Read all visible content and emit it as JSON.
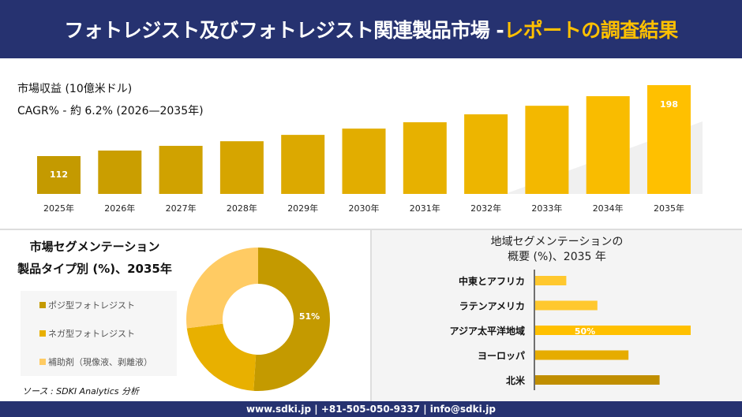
{
  "header": {
    "title_main": "フォトレジスト及びフォトレジスト関連製品市場 -",
    "title_accent": "レポートの調査結果"
  },
  "top": {
    "revenue_label": "市場収益 (10億米ドル)",
    "cagr_label": "CAGR% - 約 6.2% (2026—2035年)"
  },
  "colors": {
    "navy": "#263270",
    "accent": "#FFC000",
    "dark_gold": "#C49A00",
    "mid_gold": "#E8B000",
    "light_gold": "#FFCB63"
  },
  "chart_data": [
    {
      "type": "bar",
      "categories": [
        "2025年",
        "2026年",
        "2027年",
        "2028年",
        "2029年",
        "2030年",
        "2031年",
        "2032年",
        "2033年",
        "2034年",
        "2035年"
      ],
      "values": [
        112,
        118.7,
        124.4,
        130,
        137.7,
        145.3,
        153,
        162.6,
        173,
        184.6,
        198
      ],
      "data_labels": {
        "0": "112",
        "10": "198"
      }
    },
    {
      "type": "pie",
      "title": "市場セグメンテーション\n製品タイプ別 (%)、2035年",
      "title_line1": "市場セグメンテーション",
      "title_line2": "製品タイプ別 (%)、2035年",
      "labels": [
        "ポジ型フォトレジスト",
        "ネガ型フォトレジスト",
        "補助剤（現像液、剥離液）"
      ],
      "values": [
        51,
        22,
        27
      ],
      "colors": [
        "#C49A00",
        "#E8B000",
        "#FFCB63"
      ],
      "data_label": "51%",
      "hole": true
    },
    {
      "type": "bar",
      "orientation": "horizontal",
      "title_line1": "地域セグメンテーションの",
      "title_line2": "概要 (%)、2035 年",
      "categories": [
        "中東とアフリカ",
        "ラテンアメリカ",
        "アジア太平洋地域",
        "ヨーロッパ",
        "北米"
      ],
      "values": [
        10,
        20,
        50,
        30,
        40
      ],
      "colors": [
        "#FFC82E",
        "#FFC82E",
        "#FFC000",
        "#E6AC00",
        "#C08E00"
      ],
      "data_label": "50%"
    }
  ],
  "source": "ソース : SDKI Analytics 分析",
  "footer": "www.sdki.jp | +81-505-050-9337 | info@sdki.jp"
}
